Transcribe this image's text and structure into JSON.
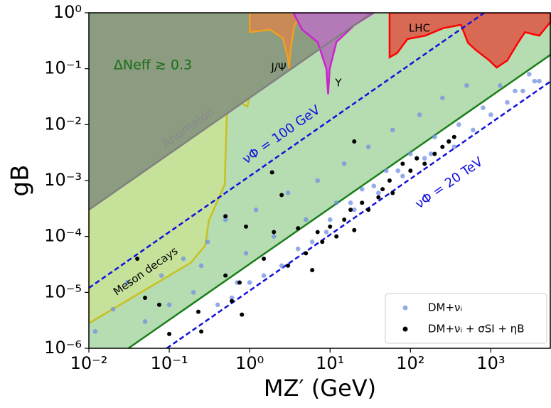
{
  "chart_data": {
    "type": "scatter",
    "xlabel": "MZ′ (GeV)",
    "ylabel": "gB",
    "xlog": true,
    "ylog": true,
    "xlim": [
      0.01,
      5600
    ],
    "ylim": [
      1e-06,
      1
    ],
    "xticks": [
      {
        "value": 0.01,
        "label": "10⁻²"
      },
      {
        "value": 0.1,
        "label": "10⁻¹"
      },
      {
        "value": 1,
        "label": "10⁰"
      },
      {
        "value": 10,
        "label": "10¹"
      },
      {
        "value": 100,
        "label": "10²"
      },
      {
        "value": 1000,
        "label": "10³"
      }
    ],
    "yticks": [
      {
        "value": 1e-06,
        "label": "10⁻⁶"
      },
      {
        "value": 1e-05,
        "label": "10⁻⁵"
      },
      {
        "value": 0.0001,
        "label": "10⁻⁴"
      },
      {
        "value": 0.001,
        "label": "10⁻³"
      },
      {
        "value": 0.01,
        "label": "10⁻²"
      },
      {
        "value": 0.1,
        "label": "10⁻¹"
      },
      {
        "value": 1,
        "label": "10⁰"
      }
    ],
    "legend": "lower right",
    "regions": [
      {
        "color": "#b6dcb2",
        "x": [
          0.01,
          0.031,
          5600,
          5600,
          0.01
        ],
        "y": [
          1e-06,
          1e-06,
          0.18,
          1,
          1
        ]
      },
      {
        "color": "#c6e19a",
        "edge": "#c8c020",
        "x": [
          0.01,
          0.186,
          0.28,
          0.31,
          0.49,
          0.51,
          0.53,
          0.94,
          1.04,
          1.04,
          0.01
        ],
        "y": [
          2.8e-06,
          3.4e-05,
          6.9e-05,
          0.00019,
          0.00085,
          0.0065,
          0.033,
          0.021,
          0.05,
          1,
          1
        ]
      },
      {
        "color": "#8c9c80",
        "x": [
          0.01,
          33,
          0.01
        ],
        "y": [
          0.0003,
          1,
          1
        ]
      },
      {
        "color": "#c98a58",
        "edge": "#f0a020",
        "x": [
          1.0,
          1.8,
          2.6,
          3.0,
          3.1,
          3.2,
          3.6,
          4.5,
          1.0
        ],
        "y": [
          0.45,
          0.5,
          0.35,
          0.15,
          0.1,
          0.2,
          0.6,
          1,
          1
        ]
      },
      {
        "color": "#b47ab8",
        "edge": "#cc22cc",
        "x": [
          3.5,
          4.5,
          7,
          9,
          9.46,
          9.9,
          12,
          20,
          35,
          3.5
        ],
        "y": [
          1,
          0.5,
          0.3,
          0.1,
          0.035,
          0.1,
          0.3,
          0.6,
          1,
          1
        ]
      },
      {
        "color": "#d86a55",
        "edge": "#ff0000",
        "x": [
          55,
          55,
          68,
          92,
          153,
          255,
          425,
          520,
          640,
          960,
          1180,
          1600,
          2170,
          2660,
          4000,
          5600,
          5600
        ],
        "y": [
          1,
          0.16,
          0.19,
          0.34,
          0.39,
          0.53,
          0.61,
          0.29,
          0.22,
          0.14,
          0.105,
          0.14,
          0.29,
          0.45,
          0.39,
          0.7,
          1
        ]
      }
    ],
    "lines": [
      {
        "color": "#808080",
        "dash": false,
        "x": [
          0.01,
          33
        ],
        "y": [
          0.0003,
          1
        ]
      },
      {
        "color": "#1a7f1a",
        "dash": false,
        "x": [
          0.031,
          5600
        ],
        "y": [
          1e-06,
          0.18
        ]
      },
      {
        "color": "#1010dd",
        "dash": true,
        "x": [
          0.01,
          830
        ],
        "y": [
          1.2e-05,
          1
        ]
      },
      {
        "color": "#1010dd",
        "dash": true,
        "x": [
          0.093,
          5600
        ],
        "y": [
          1e-06,
          0.06
        ]
      }
    ],
    "annotations": [
      "ΔNeff ≳ 0.3",
      "Anomalon",
      "Meson decays",
      "J/Ψ",
      "Υ",
      "LHC",
      "νΦ = 100 GeV",
      "νΦ = 20 TeV"
    ],
    "series": [
      {
        "name": "DM+νᵢ",
        "color": "#7090e0",
        "x": [
          0.012,
          0.02,
          0.03,
          0.05,
          0.08,
          0.1,
          0.15,
          0.2,
          0.3,
          0.4,
          0.5,
          0.7,
          0.9,
          1.2,
          1.5,
          2,
          3,
          4,
          5,
          7,
          9,
          12,
          15,
          20,
          25,
          30,
          40,
          50,
          60,
          80,
          100,
          130,
          150,
          200,
          250,
          300,
          400,
          500,
          600,
          800,
          1000,
          1300,
          1600,
          2000,
          2500,
          3000,
          3500,
          4000,
          0.25,
          0.6,
          1.0,
          2.5,
          6,
          10,
          18,
          35,
          70,
          120,
          180,
          350
        ],
        "y": [
          2e-06,
          5e-06,
          1.5e-05,
          3e-06,
          2e-05,
          6e-06,
          4e-05,
          1e-05,
          8e-05,
          6e-06,
          0.0002,
          1.5e-05,
          5e-05,
          0.0003,
          2e-05,
          0.0001,
          0.0006,
          6e-05,
          0.0002,
          0.001,
          0.00012,
          0.0004,
          0.002,
          0.0003,
          0.0007,
          0.004,
          0.0006,
          0.0015,
          0.008,
          0.0012,
          0.003,
          0.015,
          0.0025,
          0.006,
          0.03,
          0.005,
          0.01,
          0.05,
          0.008,
          0.02,
          0.015,
          0.05,
          0.025,
          0.04,
          0.04,
          0.08,
          0.06,
          0.06,
          3e-05,
          8e-06,
          1.5e-05,
          3e-05,
          8e-05,
          0.0002,
          0.0004,
          0.0008,
          0.0015,
          0.0025,
          0.003,
          0.004
        ]
      },
      {
        "name": "DM+νᵢ + σSI + ηB",
        "color": "#000000",
        "x": [
          0.04,
          0.05,
          0.075,
          0.1,
          0.23,
          0.25,
          0.5,
          0.5,
          0.6,
          0.75,
          0.8,
          0.9,
          1.5,
          1.9,
          2,
          2.5,
          3,
          4,
          5,
          6,
          7,
          8,
          10,
          12,
          15,
          18,
          20,
          20,
          25,
          30,
          40,
          45,
          55,
          60,
          80,
          100,
          120,
          150,
          200,
          250,
          300,
          350
        ],
        "y": [
          4e-05,
          8e-06,
          6e-06,
          1.8e-06,
          4.5e-06,
          2e-06,
          0.00023,
          2e-05,
          7e-06,
          1.5e-05,
          4e-06,
          0.00015,
          4e-05,
          0.0014,
          0.00012,
          0.00055,
          3e-05,
          0.00014,
          5e-05,
          2.5e-05,
          0.00012,
          8e-05,
          0.00015,
          0.0001,
          0.0002,
          0.0003,
          0.00013,
          0.005,
          0.0004,
          0.0003,
          0.0005,
          0.0007,
          0.001,
          0.0006,
          0.002,
          0.0015,
          0.0025,
          0.002,
          0.003,
          0.004,
          0.005,
          0.006
        ]
      }
    ]
  }
}
